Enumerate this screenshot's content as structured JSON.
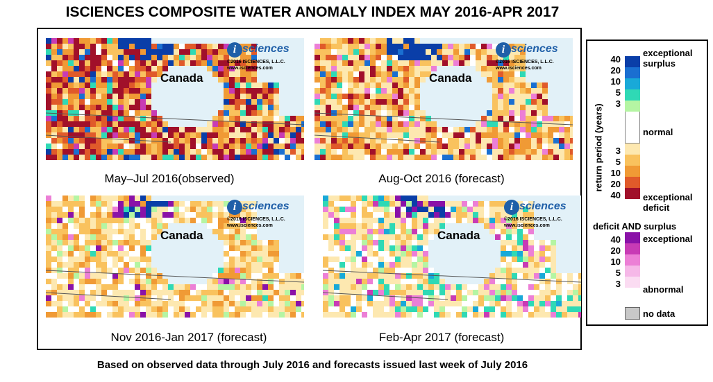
{
  "title": "ISCIENCES COMPOSITE WATER ANOMALY INDEX MAY 2016-APR 2017",
  "footer": "Based on observed data through July 2016 and forecasts issued last week of July 2016",
  "logo": {
    "badge": "i",
    "word": "sciences",
    "copyright": "©2016 ISCIENCES, L.L.C.",
    "site": "www.isciences.com"
  },
  "region_label": "Canada",
  "panels": [
    {
      "caption": "May–Jul 2016(observed)"
    },
    {
      "caption": "Aug-Oct 2016 (forecast)"
    },
    {
      "caption": "Nov 2016-Jan 2017 (forecast)"
    },
    {
      "caption": "Feb-Apr 2017 (forecast)"
    }
  ],
  "legend": {
    "axis_label": "return period (years)",
    "surplus": {
      "top_label": "exceptional\nsurplus",
      "ticks": [
        "40",
        "20",
        "10",
        "5",
        "3"
      ],
      "colors": [
        "#0a3ea8",
        "#1a6fd1",
        "#19a9d8",
        "#2fd9b5",
        "#b5f5a3"
      ]
    },
    "normal_label": "normal",
    "normal_color": "#ffffff",
    "deficit": {
      "ticks": [
        "3",
        "5",
        "10",
        "20",
        "40"
      ],
      "colors": [
        "#fde8b0",
        "#f9c25e",
        "#f09a35",
        "#e05a2a",
        "#a1102a"
      ],
      "bottom_label": "exceptional\ndeficit"
    },
    "both_title": "deficit AND surplus",
    "both": {
      "top_label": "exceptional",
      "ticks": [
        "40",
        "20",
        "10",
        "5",
        "3"
      ],
      "colors": [
        "#8a12a8",
        "#c83bb5",
        "#ec7fd6",
        "#f6b8e8",
        "#fbdcf2"
      ],
      "bottom_label": "abnormal"
    },
    "nodata_label": "no data",
    "nodata_color": "#c8c8c8"
  }
}
